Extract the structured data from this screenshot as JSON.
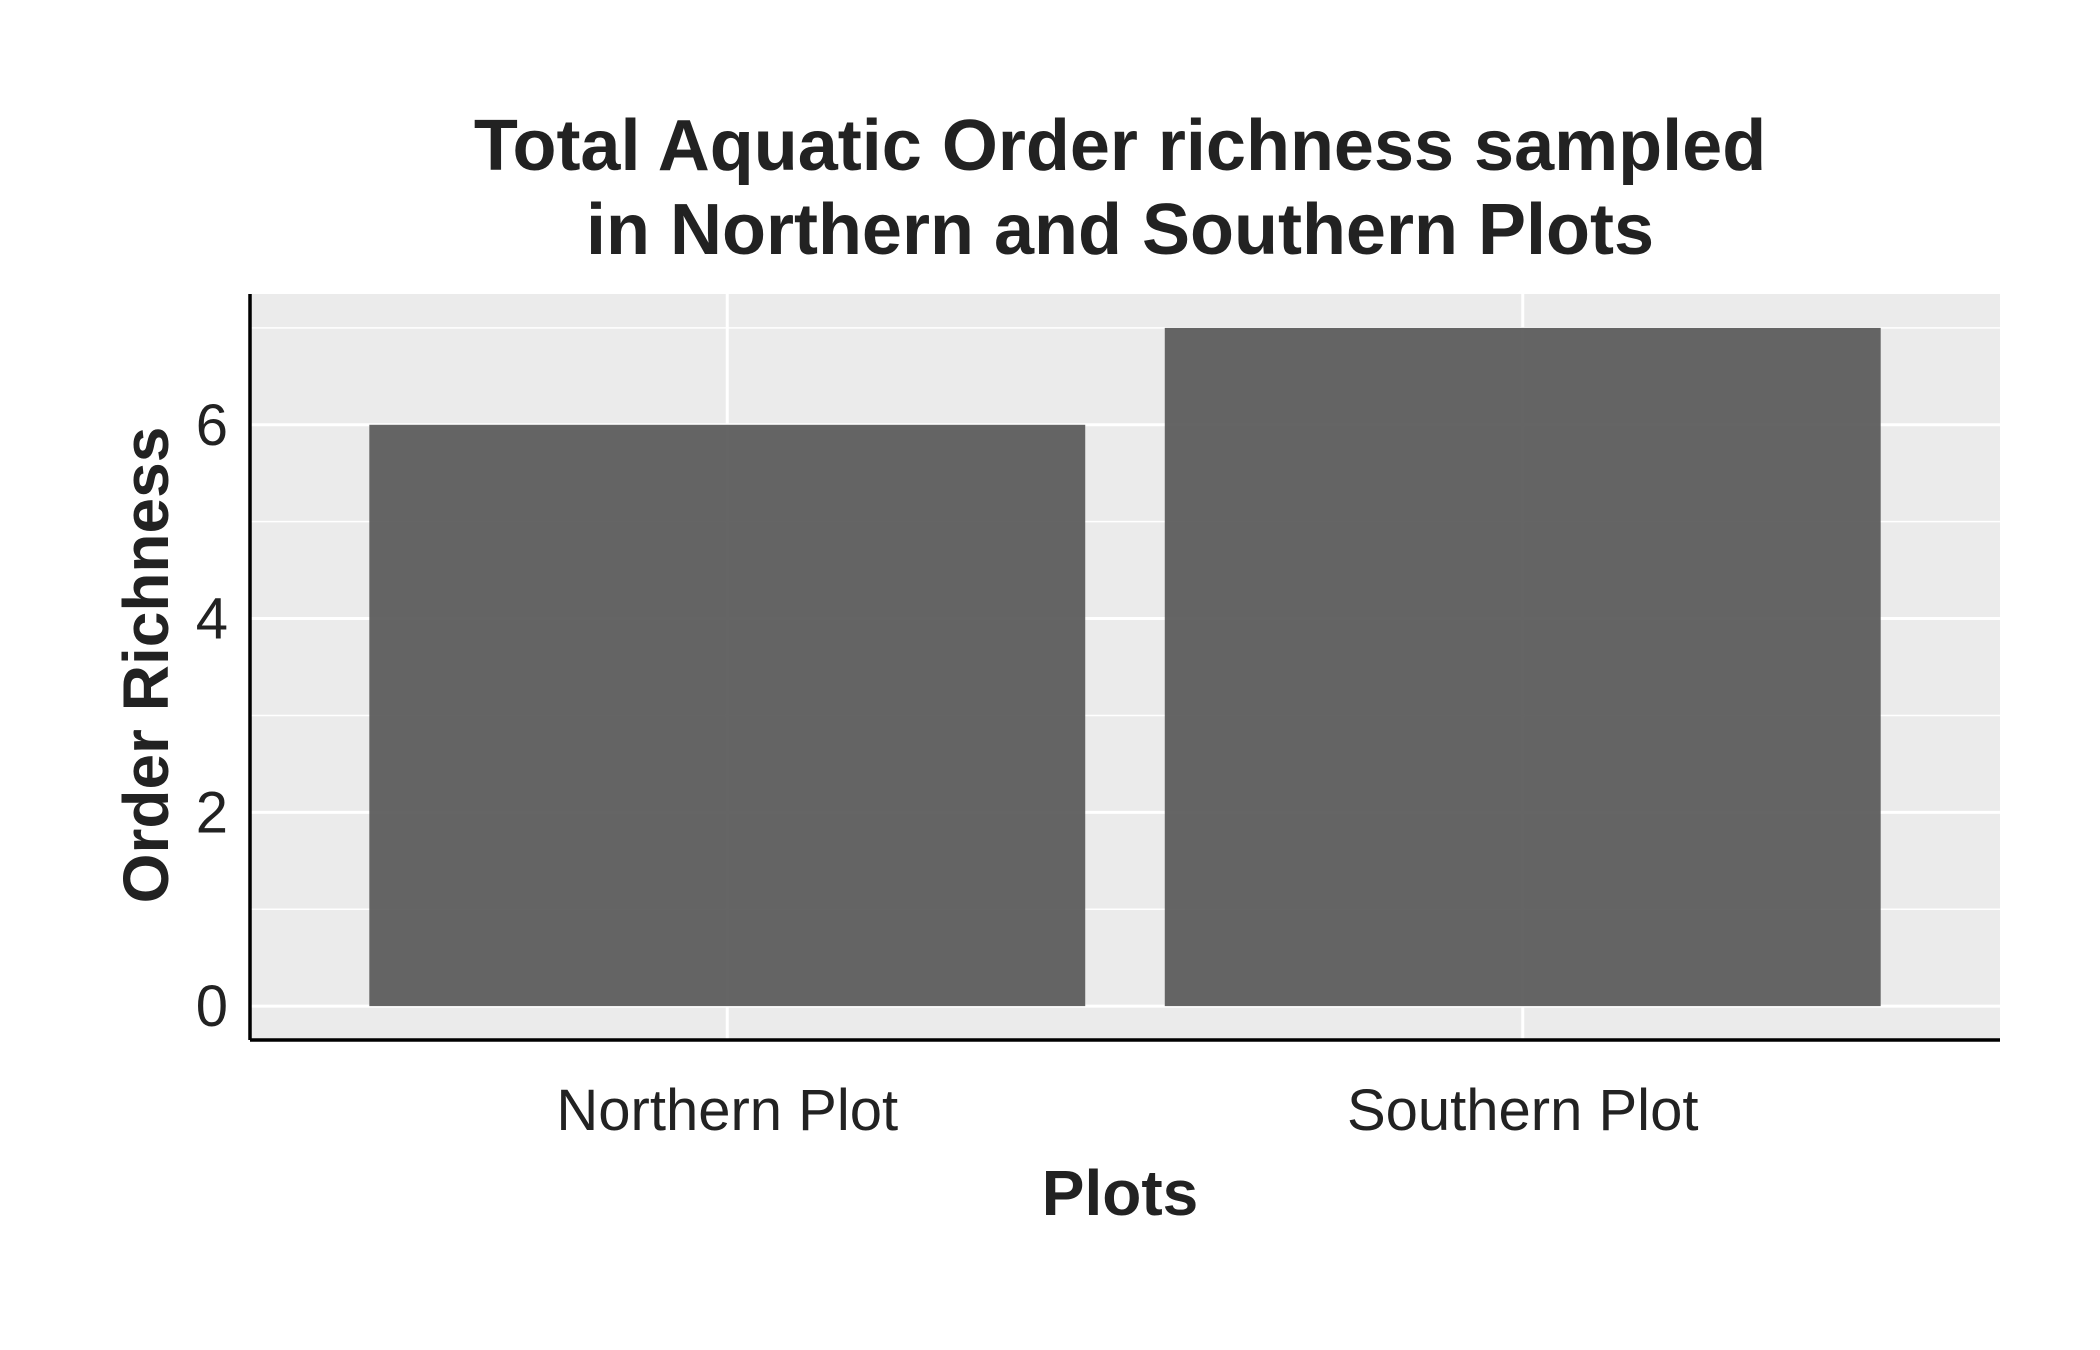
{
  "chart_data": {
    "type": "bar",
    "title_lines": [
      "Total Aquatic Order richness sampled",
      "in Northern and Southern Plots"
    ],
    "xlabel": "Plots",
    "ylabel": "Order Richness",
    "categories": [
      "Northern Plot",
      "Southern Plot"
    ],
    "values": [
      6,
      7
    ],
    "ylim": [
      -0.35,
      7.35
    ],
    "yticks": [
      0,
      2,
      4,
      6
    ],
    "grid": true,
    "legend": "none",
    "colors": {
      "bar": "#595959",
      "panel": "#ebebeb",
      "grid": "#ffffff",
      "axis": "#000000",
      "text": "#222222"
    }
  }
}
